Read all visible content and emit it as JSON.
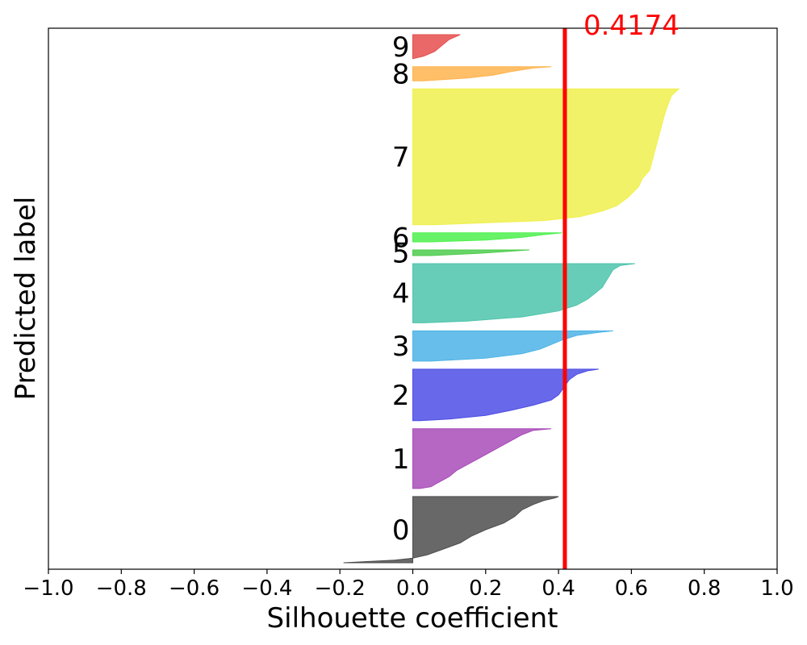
{
  "chart_data": {
    "type": "area",
    "xlabel": "Silhouette coefficient",
    "ylabel": "Predicted label",
    "xlim": [
      -1.0,
      1.0
    ],
    "xticks": [
      -1.0,
      -0.8,
      -0.6,
      -0.4,
      -0.2,
      0.0,
      0.2,
      0.4,
      0.6,
      0.8,
      1.0
    ],
    "xtick_labels": [
      "−1.0",
      "−0.8",
      "−0.6",
      "−0.4",
      "−0.2",
      "0.0",
      "0.2",
      "0.4",
      "0.6",
      "0.8",
      "1.0"
    ],
    "grid": false,
    "average_line": {
      "value": 0.4174,
      "label": "0.4174",
      "color": "#ff0000"
    },
    "clusters": [
      {
        "label": "0",
        "color": "#4d4d4d",
        "size": 94,
        "profile": [
          [
            0,
            0.4
          ],
          [
            0.02,
            0.39
          ],
          [
            0.06,
            0.36
          ],
          [
            0.12,
            0.33
          ],
          [
            0.2,
            0.3
          ],
          [
            0.3,
            0.28
          ],
          [
            0.4,
            0.25
          ],
          [
            0.5,
            0.2
          ],
          [
            0.6,
            0.16
          ],
          [
            0.7,
            0.13
          ],
          [
            0.8,
            0.08
          ],
          [
            0.88,
            0.04
          ],
          [
            0.93,
            0.0
          ],
          [
            0.96,
            -0.05
          ],
          [
            0.98,
            -0.12
          ],
          [
            1,
            -0.19
          ]
        ]
      },
      {
        "label": "1",
        "color": "#a84cb8",
        "size": 85,
        "profile": [
          [
            0,
            0.38
          ],
          [
            0.03,
            0.33
          ],
          [
            0.1,
            0.3
          ],
          [
            0.2,
            0.27
          ],
          [
            0.3,
            0.24
          ],
          [
            0.4,
            0.21
          ],
          [
            0.5,
            0.18
          ],
          [
            0.6,
            0.15
          ],
          [
            0.7,
            0.12
          ],
          [
            0.8,
            0.1
          ],
          [
            0.9,
            0.07
          ],
          [
            0.97,
            0.05
          ],
          [
            1,
            0.02
          ]
        ]
      },
      {
        "label": "2",
        "color": "#4d4de6",
        "size": 73,
        "profile": [
          [
            0,
            0.51
          ],
          [
            0.03,
            0.48
          ],
          [
            0.1,
            0.45
          ],
          [
            0.2,
            0.43
          ],
          [
            0.3,
            0.42
          ],
          [
            0.4,
            0.41
          ],
          [
            0.5,
            0.4
          ],
          [
            0.6,
            0.38
          ],
          [
            0.7,
            0.33
          ],
          [
            0.8,
            0.27
          ],
          [
            0.9,
            0.2
          ],
          [
            0.97,
            0.1
          ],
          [
            1,
            0.02
          ]
        ]
      },
      {
        "label": "3",
        "color": "#4db3e6",
        "size": 43,
        "profile": [
          [
            0,
            0.55
          ],
          [
            0.05,
            0.51
          ],
          [
            0.15,
            0.45
          ],
          [
            0.3,
            0.41
          ],
          [
            0.45,
            0.38
          ],
          [
            0.6,
            0.35
          ],
          [
            0.75,
            0.3
          ],
          [
            0.9,
            0.2
          ],
          [
            1,
            0.05
          ]
        ]
      },
      {
        "label": "4",
        "color": "#4dc4ac",
        "size": 84,
        "profile": [
          [
            0,
            0.61
          ],
          [
            0.03,
            0.57
          ],
          [
            0.1,
            0.55
          ],
          [
            0.2,
            0.54
          ],
          [
            0.3,
            0.53
          ],
          [
            0.4,
            0.52
          ],
          [
            0.5,
            0.5
          ],
          [
            0.6,
            0.48
          ],
          [
            0.7,
            0.45
          ],
          [
            0.8,
            0.4
          ],
          [
            0.9,
            0.3
          ],
          [
            0.97,
            0.15
          ],
          [
            1,
            0.03
          ]
        ]
      },
      {
        "label": "5",
        "color": "#4dcc4d",
        "size": 8,
        "profile": [
          [
            0,
            0.32
          ],
          [
            0.3,
            0.25
          ],
          [
            0.6,
            0.18
          ],
          [
            1,
            0.05
          ]
        ]
      },
      {
        "label": "6",
        "color": "#4df04d",
        "size": 13,
        "profile": [
          [
            0,
            0.41
          ],
          [
            0.2,
            0.36
          ],
          [
            0.5,
            0.3
          ],
          [
            0.8,
            0.2
          ],
          [
            1,
            0.05
          ]
        ]
      },
      {
        "label": "7",
        "color": "#f0f04d",
        "size": 193,
        "profile": [
          [
            0,
            0.73
          ],
          [
            0.05,
            0.71
          ],
          [
            0.12,
            0.7
          ],
          [
            0.2,
            0.69
          ],
          [
            0.3,
            0.68
          ],
          [
            0.4,
            0.67
          ],
          [
            0.5,
            0.66
          ],
          [
            0.6,
            0.65
          ],
          [
            0.66,
            0.63
          ],
          [
            0.72,
            0.62
          ],
          [
            0.8,
            0.59
          ],
          [
            0.86,
            0.56
          ],
          [
            0.9,
            0.52
          ],
          [
            0.94,
            0.46
          ],
          [
            0.97,
            0.36
          ],
          [
            1,
            0.06
          ]
        ]
      },
      {
        "label": "8",
        "color": "#ffb34d",
        "size": 20,
        "profile": [
          [
            0,
            0.38
          ],
          [
            0.1,
            0.33
          ],
          [
            0.35,
            0.27
          ],
          [
            0.6,
            0.22
          ],
          [
            0.8,
            0.15
          ],
          [
            1,
            0.03
          ]
        ]
      },
      {
        "label": "9",
        "color": "#e64d4d",
        "size": 34,
        "profile": [
          [
            0,
            0.13
          ],
          [
            0.2,
            0.1
          ],
          [
            0.45,
            0.08
          ],
          [
            0.7,
            0.06
          ],
          [
            0.9,
            0.03
          ],
          [
            1,
            0.0
          ]
        ]
      }
    ]
  }
}
